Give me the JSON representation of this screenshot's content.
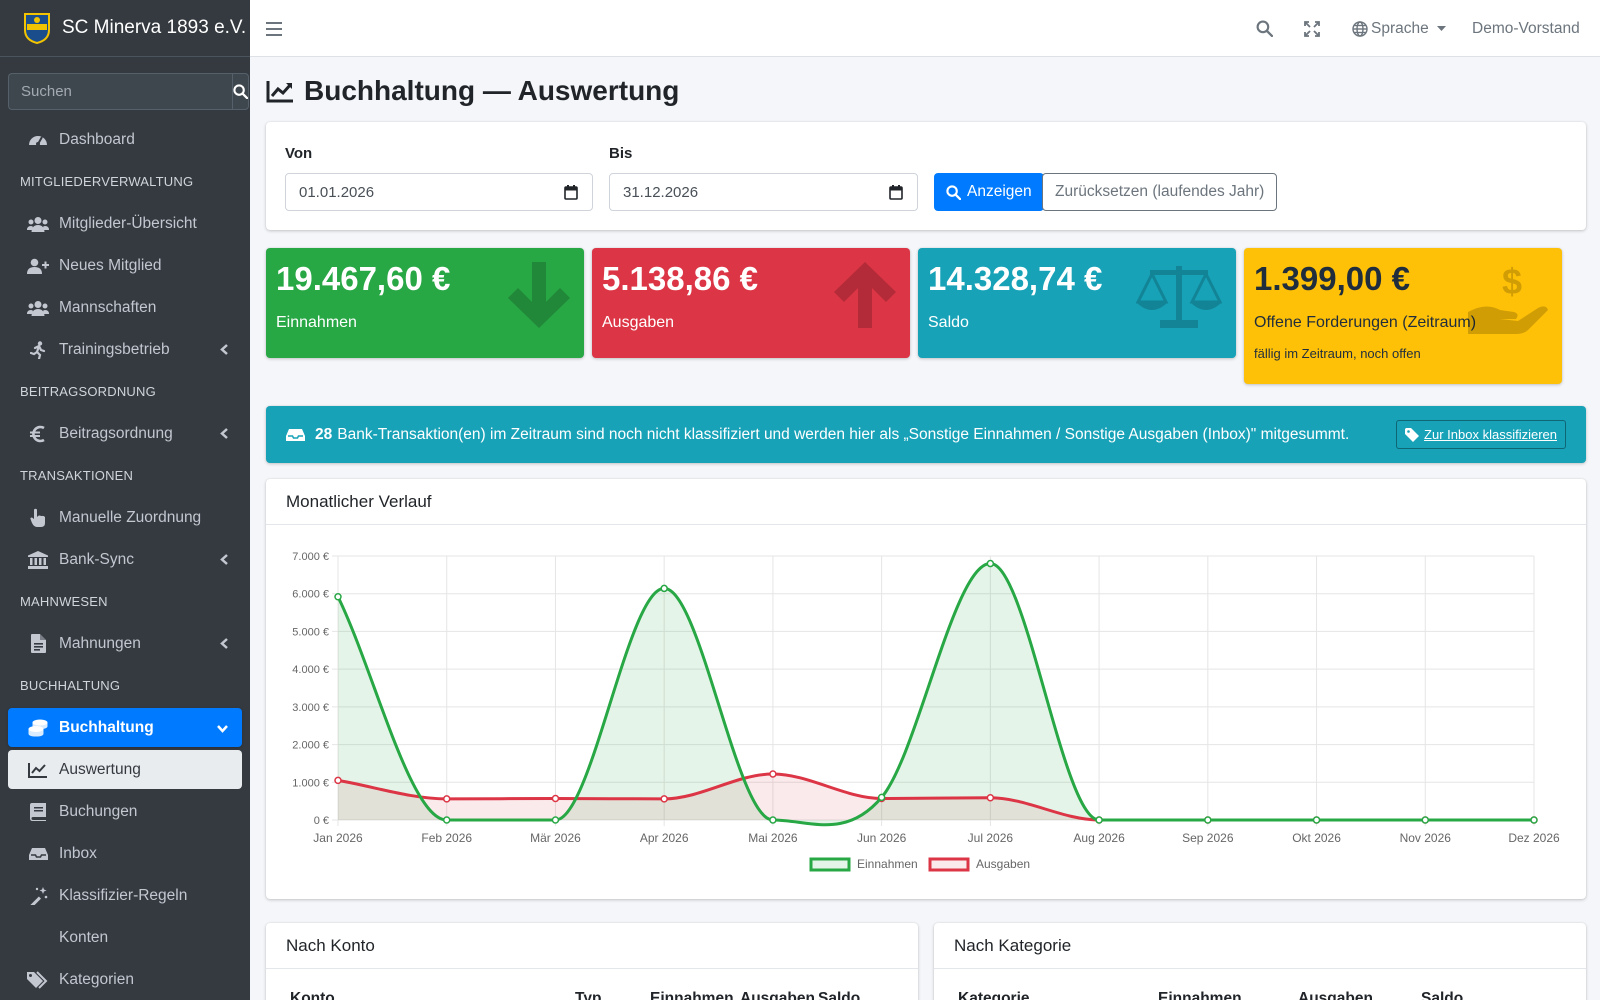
{
  "brand": {
    "name": "SC Minerva 1893 e.V."
  },
  "sidebar": {
    "search_placeholder": "Suchen",
    "items": [
      {
        "type": "item",
        "label": "Dashboard",
        "icon": "tachometer-icon"
      },
      {
        "type": "header",
        "label": "MITGLIEDERVERWALTUNG"
      },
      {
        "type": "item",
        "label": "Mitglieder-Übersicht",
        "icon": "users-icon"
      },
      {
        "type": "item",
        "label": "Neues Mitglied",
        "icon": "user-plus-icon"
      },
      {
        "type": "item",
        "label": "Mannschaften",
        "icon": "users-icon"
      },
      {
        "type": "item",
        "label": "Trainingsbetrieb",
        "icon": "running-icon",
        "arrow": "left"
      },
      {
        "type": "header",
        "label": "BEITRAGSORDNUNG"
      },
      {
        "type": "item",
        "label": "Beitragsordnung",
        "icon": "euro-icon",
        "arrow": "left"
      },
      {
        "type": "header",
        "label": "TRANSAKTIONEN"
      },
      {
        "type": "item",
        "label": "Manuelle Zuordnung",
        "icon": "hand-pointer-icon"
      },
      {
        "type": "item",
        "label": "Bank-Sync",
        "icon": "university-icon",
        "arrow": "left"
      },
      {
        "type": "header",
        "label": "MAHNWESEN"
      },
      {
        "type": "item",
        "label": "Mahnungen",
        "icon": "file-icon",
        "arrow": "left"
      },
      {
        "type": "header",
        "label": "BUCHHALTUNG"
      },
      {
        "type": "item",
        "label": "Buchhaltung",
        "icon": "coins-icon",
        "arrow": "down",
        "state": "active"
      },
      {
        "type": "item",
        "label": "Auswertung",
        "icon": "chart-line-icon",
        "state": "sub-active"
      },
      {
        "type": "item",
        "label": "Buchungen",
        "icon": "book-icon"
      },
      {
        "type": "item",
        "label": "Inbox",
        "icon": "inbox-icon"
      },
      {
        "type": "item",
        "label": "Klassifizier-Regeln",
        "icon": "magic-icon"
      },
      {
        "type": "item",
        "label": "Konten",
        "icon": ""
      },
      {
        "type": "item",
        "label": "Kategorien",
        "icon": "tags-icon"
      }
    ]
  },
  "topbar": {
    "language_label": "Sprache",
    "user_label": "Demo-Vorstand"
  },
  "page": {
    "title": "Buchhaltung — Auswertung"
  },
  "filter": {
    "from_label": "Von",
    "from_value": "01.01.2026",
    "to_label": "Bis",
    "to_value": "31.12.2026",
    "show_button": "Anzeigen",
    "reset_button": "Zurücksetzen (laufendes Jahr)"
  },
  "stats": [
    {
      "value": "19.467,60 €",
      "label": "Einnahmen",
      "sublabel": "",
      "color": "#28a745",
      "icon": "arrow-down-icon",
      "text_color": "#ffffff"
    },
    {
      "value": "5.138,86 €",
      "label": "Ausgaben",
      "sublabel": "",
      "color": "#dc3545",
      "icon": "arrow-up-icon",
      "text_color": "#ffffff"
    },
    {
      "value": "14.328,74 €",
      "label": "Saldo",
      "sublabel": "",
      "color": "#17a2b8",
      "icon": "balance-scale-icon",
      "text_color": "#ffffff"
    },
    {
      "value": "1.399,00 €",
      "label": "Offene Forderungen (Zeitraum)",
      "sublabel": "fällig im Zeitraum, noch offen",
      "color": "#ffc107",
      "icon": "hand-holding-usd-icon",
      "text_color": "#1f2d3d"
    }
  ],
  "alert": {
    "count": "28",
    "text": "Bank-Transaktion(en) im Zeitraum sind noch nicht klassifiziert und werden hier als „Sonstige Einnahmen / Sonstige Ausgaben (Inbox)\" mitgesummt.",
    "button": "Zur Inbox klassifizieren"
  },
  "chart_card": {
    "title": "Monatlicher Verlauf"
  },
  "chart_data": {
    "type": "area",
    "categories": [
      "Jan 2026",
      "Feb 2026",
      "Mär 2026",
      "Apr 2026",
      "Mai 2026",
      "Jun 2026",
      "Jul 2026",
      "Aug 2026",
      "Sep 2026",
      "Okt 2026",
      "Nov 2026",
      "Dez 2026"
    ],
    "series": [
      {
        "name": "Einnahmen",
        "color": "#28a745",
        "values": [
          5920,
          0,
          0,
          6140,
          0,
          600,
          6800,
          0,
          0,
          0,
          0,
          0
        ]
      },
      {
        "name": "Ausgaben",
        "color": "#dc3545",
        "values": [
          1050,
          560,
          570,
          560,
          1220,
          570,
          590,
          0,
          0,
          0,
          0,
          0
        ]
      }
    ],
    "ylim": [
      0,
      7000
    ],
    "yticks": [
      "0 €",
      "1.000 €",
      "2.000 €",
      "3.000 €",
      "4.000 €",
      "5.000 €",
      "6.000 €",
      "7.000 €"
    ],
    "legend": "bottom",
    "grid": true
  },
  "konto_card": {
    "title": "Nach Konto",
    "columns": [
      "Konto",
      "Typ",
      "Einnahmen",
      "Ausgaben",
      "Saldo"
    ]
  },
  "kategorie_card": {
    "title": "Nach Kategorie",
    "columns": [
      "Kategorie",
      "Einnahmen",
      "Ausgaben",
      "Saldo"
    ]
  }
}
